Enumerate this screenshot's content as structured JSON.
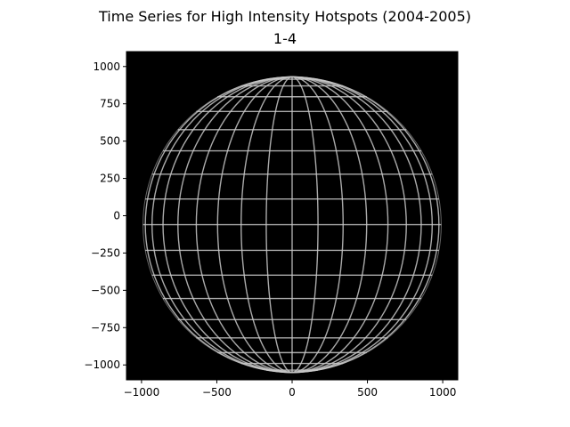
{
  "chart_data": {
    "type": "heatmap",
    "title": "Time Series for High Intensity Hotspots (2004-2005)",
    "subtitle": "1-4",
    "xlabel": "",
    "ylabel": "",
    "xlim": [
      -1100,
      1100
    ],
    "ylim": [
      -1100,
      1100
    ],
    "x_ticks": [
      -1000,
      -500,
      0,
      500,
      1000
    ],
    "x_tick_labels": [
      "−1000",
      "−500",
      "0",
      "500",
      "1000"
    ],
    "y_ticks": [
      1000,
      750,
      500,
      250,
      0,
      -250,
      -500,
      -750,
      -1000
    ],
    "y_tick_labels": [
      "1000",
      "750",
      "500",
      "250",
      "0",
      "−250",
      "−500",
      "−750",
      "−1000"
    ],
    "image": {
      "description_colors": {
        "background": "#000000",
        "grid": "#c8c8c8"
      },
      "disk_radius": 990,
      "disk_center": [
        0,
        -60
      ],
      "latitude_step_deg": 10,
      "longitude_step_deg": 10
    }
  }
}
